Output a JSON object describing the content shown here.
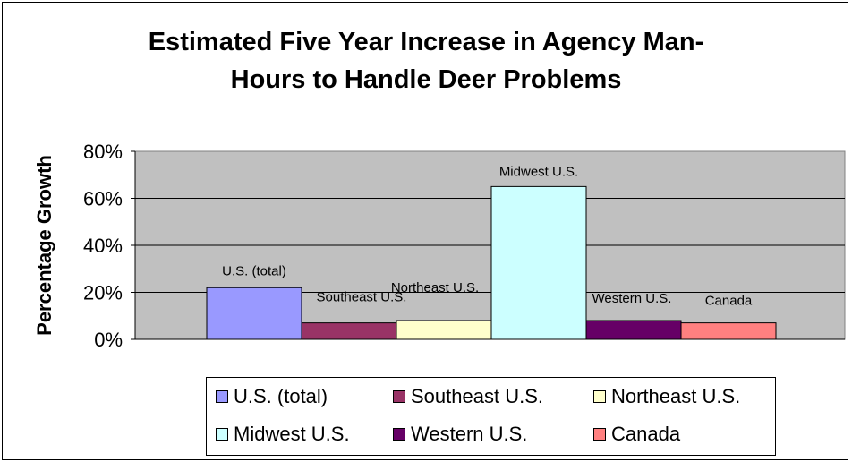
{
  "chart_data": {
    "type": "bar",
    "title": "Estimated Five Year Increase in Agency Man-Hours to Handle Deer Problems",
    "title_lines": [
      "Estimated Five Year Increase in Agency Man-",
      "Hours to Handle Deer Problems"
    ],
    "xlabel": "",
    "ylabel": "Percentage Growth",
    "ylim": [
      0,
      0.8
    ],
    "yticks": [
      {
        "value": 0,
        "label": "0%"
      },
      {
        "value": 0.2,
        "label": "20%"
      },
      {
        "value": 0.4,
        "label": "40%"
      },
      {
        "value": 0.6,
        "label": "60%"
      },
      {
        "value": 0.8,
        "label": "80%"
      }
    ],
    "grid": true,
    "legend_position": "bottom",
    "plot_background": "#c0c0c0",
    "series": [
      {
        "name": "U.S. (total)",
        "value": 0.22,
        "color": "#9999ff",
        "data_label": "U.S. (total)"
      },
      {
        "name": "Southeast U.S.",
        "value": 0.07,
        "color": "#993366",
        "data_label": "Southeast U.S."
      },
      {
        "name": "Northeast U.S.",
        "value": 0.08,
        "color": "#ffffcc",
        "data_label": "Northeast U.S."
      },
      {
        "name": "Midwest U.S.",
        "value": 0.65,
        "color": "#ccffff",
        "data_label": "Midwest U.S."
      },
      {
        "name": "Western U.S.",
        "value": 0.08,
        "color": "#660066",
        "data_label": "Western U.S."
      },
      {
        "name": "Canada",
        "value": 0.07,
        "color": "#ff8080",
        "data_label": "Canada"
      }
    ]
  }
}
